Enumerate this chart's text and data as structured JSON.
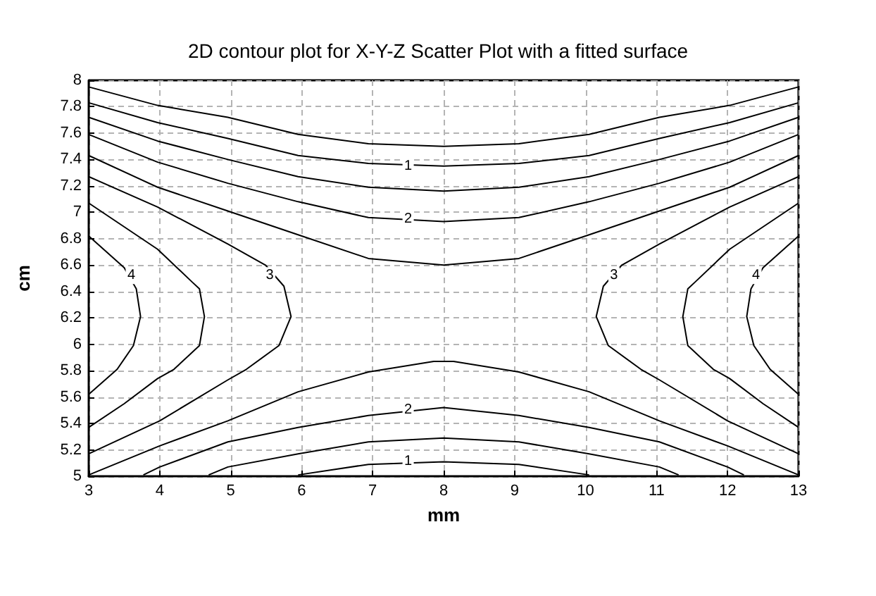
{
  "chart_data": {
    "type": "line",
    "title": "2D contour plot for X-Y-Z Scatter Plot with a fitted surface",
    "xlabel": "mm",
    "ylabel": "cm",
    "xlim": [
      3,
      13
    ],
    "xticks": [
      3,
      4,
      5,
      6,
      7,
      8,
      9,
      10,
      11,
      12,
      13
    ],
    "ylim": [
      5,
      8
    ],
    "yticks": [
      5,
      5.2,
      5.4,
      5.6,
      5.8,
      6,
      6.2,
      6.4,
      6.6,
      6.8,
      7,
      7.2,
      7.4,
      7.6,
      7.8,
      8
    ],
    "grid": true,
    "marker": "none",
    "line_style": "solid",
    "series": [
      {
        "color": "#000000",
        "x": [
          3,
          3.97,
          4.96,
          5.95,
          6.94,
          8,
          9.06,
          10.05,
          11.04,
          12.03,
          13
        ],
        "values": [
          7.95,
          7.81,
          7.72,
          7.59,
          7.52,
          7.5,
          7.52,
          7.59,
          7.72,
          7.81,
          7.95
        ]
      },
      {
        "color": "#000000",
        "x": [
          3,
          3.97,
          4.96,
          5.95,
          6.94,
          8,
          9.06,
          10.05,
          11.04,
          12.03,
          13
        ],
        "values": [
          7.83,
          7.68,
          7.56,
          7.43,
          7.37,
          7.35,
          7.37,
          7.43,
          7.56,
          7.68,
          7.83
        ]
      },
      {
        "color": "#000000",
        "x": [
          3,
          3.97,
          4.96,
          5.95,
          6.94,
          8,
          9.06,
          10.05,
          11.04,
          12.03,
          13
        ],
        "values": [
          7.72,
          7.54,
          7.4,
          7.27,
          7.19,
          7.16,
          7.19,
          7.27,
          7.4,
          7.54,
          7.72
        ]
      },
      {
        "color": "#000000",
        "x": [
          3,
          3.97,
          4.96,
          5.95,
          6.94,
          8,
          9.06,
          10.05,
          11.04,
          12.03,
          13
        ],
        "values": [
          7.59,
          7.38,
          7.22,
          7.08,
          6.96,
          6.93,
          6.96,
          7.08,
          7.22,
          7.38,
          7.59
        ]
      },
      {
        "color": "#000000",
        "x": [
          3,
          3.97,
          4.96,
          5.95,
          6.94,
          8,
          9.06,
          10.05,
          11.04,
          12.03,
          13
        ],
        "values": [
          7.43,
          7.19,
          7.01,
          6.83,
          6.65,
          6.6,
          6.65,
          6.83,
          7.01,
          7.19,
          7.43
        ]
      },
      {
        "color": "#000000",
        "x": [
          3,
          3.97,
          4.96,
          5.49,
          5.75,
          5.85,
          5.68,
          5.22,
          4.96,
          4,
          3
        ],
        "values": [
          7.27,
          7.04,
          6.76,
          6.6,
          6.44,
          6.21,
          5.99,
          5.81,
          5.73,
          5.42,
          5.17
        ]
      },
      {
        "color": "#000000",
        "x": [
          3,
          3.97,
          4.46,
          4.56,
          4.63,
          4.56,
          4.2,
          3.97,
          3.5,
          3
        ],
        "values": [
          7.07,
          6.72,
          6.47,
          6.42,
          6.21,
          5.99,
          5.81,
          5.74,
          5.55,
          5.37
        ]
      },
      {
        "color": "#000000",
        "x": [
          3,
          3.5,
          3.67,
          3.73,
          3.63,
          3.4,
          3
        ],
        "values": [
          6.82,
          6.58,
          6.42,
          6.21,
          5.99,
          5.81,
          5.62
        ]
      },
      {
        "color": "#000000",
        "x": [
          13,
          12.03,
          11.04,
          10.51,
          10.25,
          10.15,
          10.32,
          10.78,
          11.04,
          12,
          13
        ],
        "values": [
          7.27,
          7.04,
          6.76,
          6.6,
          6.44,
          6.21,
          5.99,
          5.81,
          5.73,
          5.42,
          5.17
        ]
      },
      {
        "color": "#000000",
        "x": [
          13,
          12.03,
          11.54,
          11.44,
          11.37,
          11.44,
          11.8,
          12.03,
          12.5,
          13
        ],
        "values": [
          7.07,
          6.72,
          6.47,
          6.42,
          6.21,
          5.99,
          5.81,
          5.74,
          5.55,
          5.37
        ]
      },
      {
        "color": "#000000",
        "x": [
          13,
          12.5,
          12.33,
          12.27,
          12.37,
          12.6,
          13
        ],
        "values": [
          6.82,
          6.58,
          6.42,
          6.21,
          5.99,
          5.81,
          5.62
        ]
      },
      {
        "color": "#000000",
        "x": [
          3,
          4,
          4.96,
          5.95,
          6.94,
          7.86,
          8.14,
          9.06,
          10.05,
          11.04,
          12,
          13
        ],
        "values": [
          5.01,
          5.23,
          5.42,
          5.64,
          5.79,
          5.87,
          5.87,
          5.79,
          5.64,
          5.42,
          5.23,
          5.01
        ]
      },
      {
        "color": "#000000",
        "x": [
          3.77,
          4,
          4.96,
          5.95,
          6.94,
          8,
          9.06,
          10.05,
          11.04,
          12,
          12.23
        ],
        "values": [
          5.01,
          5.07,
          5.26,
          5.37,
          5.46,
          5.52,
          5.46,
          5.37,
          5.26,
          5.07,
          5.01
        ]
      },
      {
        "color": "#000000",
        "x": [
          4.69,
          4.96,
          5.95,
          6.94,
          8,
          9.06,
          10.05,
          11.04,
          11.31
        ],
        "values": [
          5.01,
          5.07,
          5.17,
          5.26,
          5.29,
          5.26,
          5.17,
          5.07,
          5.01
        ]
      },
      {
        "color": "#000000",
        "x": [
          5.95,
          6.94,
          8,
          9.06,
          10.05
        ],
        "values": [
          5.01,
          5.09,
          5.11,
          5.09,
          5.01
        ]
      }
    ],
    "annotations": [
      {
        "text": "1",
        "x": 7.5,
        "y": 7.35
      },
      {
        "text": "2",
        "x": 7.5,
        "y": 6.95
      },
      {
        "text": "3",
        "x": 5.55,
        "y": 6.52
      },
      {
        "text": "4",
        "x": 3.6,
        "y": 6.52
      },
      {
        "text": "3",
        "x": 10.4,
        "y": 6.52
      },
      {
        "text": "4",
        "x": 12.4,
        "y": 6.52
      },
      {
        "text": "2",
        "x": 7.5,
        "y": 5.5
      },
      {
        "text": "1",
        "x": 7.5,
        "y": 5.11
      }
    ]
  }
}
